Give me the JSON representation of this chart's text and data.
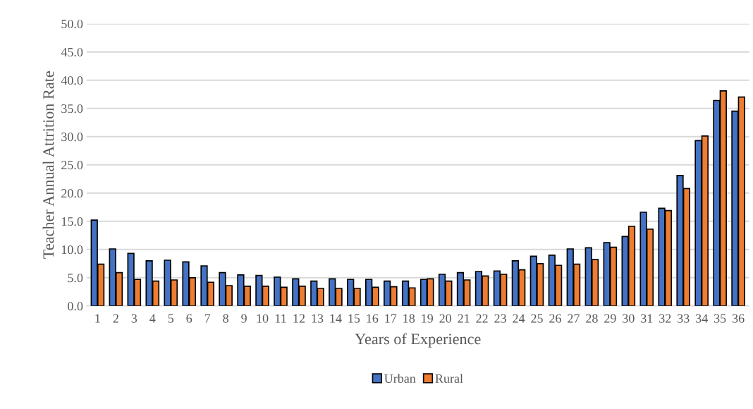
{
  "chart_data": {
    "type": "bar",
    "xlabel": "Years of Experience",
    "ylabel": "Teacher Annual Attrition Rate",
    "categories": [
      "1",
      "2",
      "3",
      "4",
      "5",
      "6",
      "7",
      "8",
      "9",
      "10",
      "11",
      "12",
      "13",
      "14",
      "15",
      "16",
      "17",
      "18",
      "19",
      "20",
      "21",
      "22",
      "23",
      "24",
      "25",
      "26",
      "27",
      "28",
      "29",
      "30",
      "31",
      "32",
      "33",
      "34",
      "35",
      "36"
    ],
    "series": [
      {
        "name": "Urban",
        "color": "#4472c4",
        "values": [
          15.2,
          10.1,
          9.3,
          8.0,
          8.1,
          7.8,
          7.1,
          5.9,
          5.5,
          5.4,
          5.1,
          4.8,
          4.4,
          4.8,
          4.7,
          4.7,
          4.4,
          4.4,
          4.7,
          5.6,
          5.9,
          6.1,
          6.2,
          8.0,
          8.8,
          9.0,
          10.1,
          10.3,
          11.2,
          12.3,
          16.6,
          17.3,
          23.1,
          29.3,
          36.4,
          34.5
        ]
      },
      {
        "name": "Rural",
        "color": "#ed7d31",
        "values": [
          7.4,
          5.9,
          4.7,
          4.4,
          4.6,
          5.0,
          4.2,
          3.6,
          3.5,
          3.5,
          3.3,
          3.5,
          3.1,
          3.1,
          3.1,
          3.3,
          3.4,
          3.2,
          4.8,
          4.4,
          4.6,
          5.3,
          5.6,
          6.4,
          7.5,
          7.2,
          7.4,
          8.2,
          10.4,
          14.1,
          13.6,
          16.9,
          20.8,
          30.1,
          38.1,
          37.0
        ]
      }
    ],
    "ylim": [
      0,
      50
    ],
    "yticks": [
      {
        "value": 0,
        "label": "0.0"
      },
      {
        "value": 5,
        "label": "5.0"
      },
      {
        "value": 10,
        "label": "10.0"
      },
      {
        "value": 15,
        "label": "15.0"
      },
      {
        "value": 20,
        "label": "20.0"
      },
      {
        "value": 25,
        "label": "25.0"
      },
      {
        "value": 30,
        "label": "30.0"
      },
      {
        "value": 35,
        "label": "35.0"
      },
      {
        "value": 40,
        "label": "40.0"
      },
      {
        "value": 45,
        "label": "45.0"
      },
      {
        "value": 50,
        "label": "50.0"
      }
    ],
    "grid": "y",
    "legend": "bottom"
  }
}
